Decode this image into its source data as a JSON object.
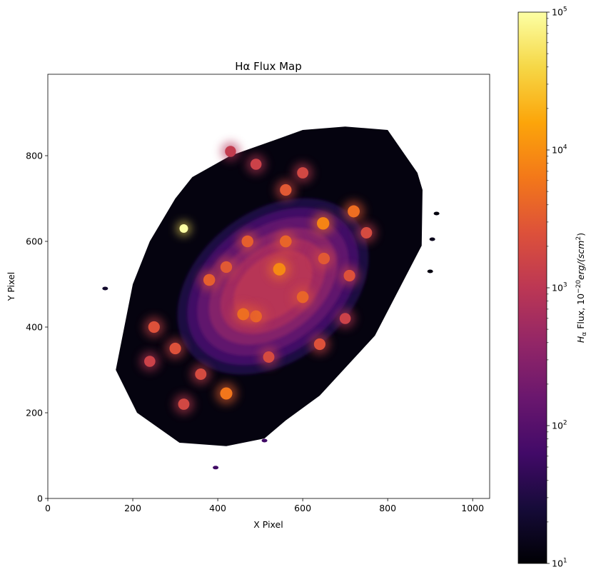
{
  "chart_data": {
    "type": "heatmap",
    "title": "Hα Flux Map",
    "xlabel": "X Pixel",
    "ylabel": "Y Pixel",
    "xlim": [
      0,
      1040
    ],
    "ylim": [
      0,
      990
    ],
    "x_ticks": [
      0,
      200,
      400,
      600,
      800,
      1000
    ],
    "y_ticks": [
      0,
      200,
      400,
      600,
      800
    ],
    "colormap": "inferno",
    "colorbar": {
      "label_parts": {
        "h": "H",
        "sub": "α",
        "mid": " Flux, 10",
        "sup": "−20",
        "unit": "erg/(scm",
        "sup2": "2",
        "close": ")"
      },
      "scale": "log",
      "range": [
        10,
        100000
      ],
      "ticks": [
        {
          "value": 10,
          "base": "10",
          "exp": "1"
        },
        {
          "value": 100,
          "base": "10",
          "exp": "2"
        },
        {
          "value": 1000,
          "base": "10",
          "exp": "3"
        },
        {
          "value": 10000,
          "base": "10",
          "exp": "4"
        },
        {
          "value": 100000,
          "base": "10",
          "exp": "5"
        }
      ]
    },
    "galaxy_outline": [
      [
        310,
        130
      ],
      [
        420,
        122
      ],
      [
        510,
        140
      ],
      [
        560,
        182
      ],
      [
        640,
        240
      ],
      [
        770,
        380
      ],
      [
        880,
        590
      ],
      [
        882,
        720
      ],
      [
        870,
        760
      ],
      [
        800,
        860
      ],
      [
        700,
        868
      ],
      [
        600,
        860
      ],
      [
        530,
        835
      ],
      [
        430,
        800
      ],
      [
        340,
        750
      ],
      [
        300,
        700
      ],
      [
        240,
        600
      ],
      [
        200,
        500
      ],
      [
        160,
        300
      ],
      [
        210,
        200
      ]
    ],
    "hot_spots": [
      {
        "x": 545,
        "y": 535,
        "flux": 9000
      },
      {
        "x": 648,
        "y": 642,
        "flux": 8000
      },
      {
        "x": 420,
        "y": 245,
        "flux": 6000
      },
      {
        "x": 320,
        "y": 630,
        "flux": 100000
      },
      {
        "x": 720,
        "y": 670,
        "flux": 5000
      },
      {
        "x": 490,
        "y": 425,
        "flux": 4000
      },
      {
        "x": 600,
        "y": 470,
        "flux": 4000
      },
      {
        "x": 380,
        "y": 510,
        "flux": 3500
      },
      {
        "x": 470,
        "y": 600,
        "flux": 3500
      },
      {
        "x": 560,
        "y": 720,
        "flux": 3000
      },
      {
        "x": 300,
        "y": 350,
        "flux": 2500
      },
      {
        "x": 250,
        "y": 400,
        "flux": 2500
      },
      {
        "x": 650,
        "y": 560,
        "flux": 3000
      },
      {
        "x": 710,
        "y": 520,
        "flux": 2500
      },
      {
        "x": 520,
        "y": 330,
        "flux": 2000
      },
      {
        "x": 640,
        "y": 360,
        "flux": 2500
      },
      {
        "x": 360,
        "y": 290,
        "flux": 2000
      },
      {
        "x": 750,
        "y": 620,
        "flux": 2000
      },
      {
        "x": 490,
        "y": 780,
        "flux": 1500
      },
      {
        "x": 430,
        "y": 810,
        "flux": 1200
      },
      {
        "x": 460,
        "y": 430,
        "flux": 5000
      },
      {
        "x": 560,
        "y": 600,
        "flux": 4000
      },
      {
        "x": 700,
        "y": 420,
        "flux": 1500
      },
      {
        "x": 320,
        "y": 220,
        "flux": 1800
      },
      {
        "x": 240,
        "y": 320,
        "flux": 1500
      },
      {
        "x": 420,
        "y": 540,
        "flux": 3000
      },
      {
        "x": 600,
        "y": 760,
        "flux": 1800
      }
    ],
    "isolated_blobs": [
      {
        "x": 135,
        "y": 490,
        "flux": 20
      },
      {
        "x": 510,
        "y": 135,
        "flux": 60
      },
      {
        "x": 395,
        "y": 72,
        "flux": 60
      },
      {
        "x": 905,
        "y": 605,
        "flux": 15
      },
      {
        "x": 915,
        "y": 665,
        "flux": 12
      },
      {
        "x": 900,
        "y": 530,
        "flux": 12
      }
    ]
  }
}
